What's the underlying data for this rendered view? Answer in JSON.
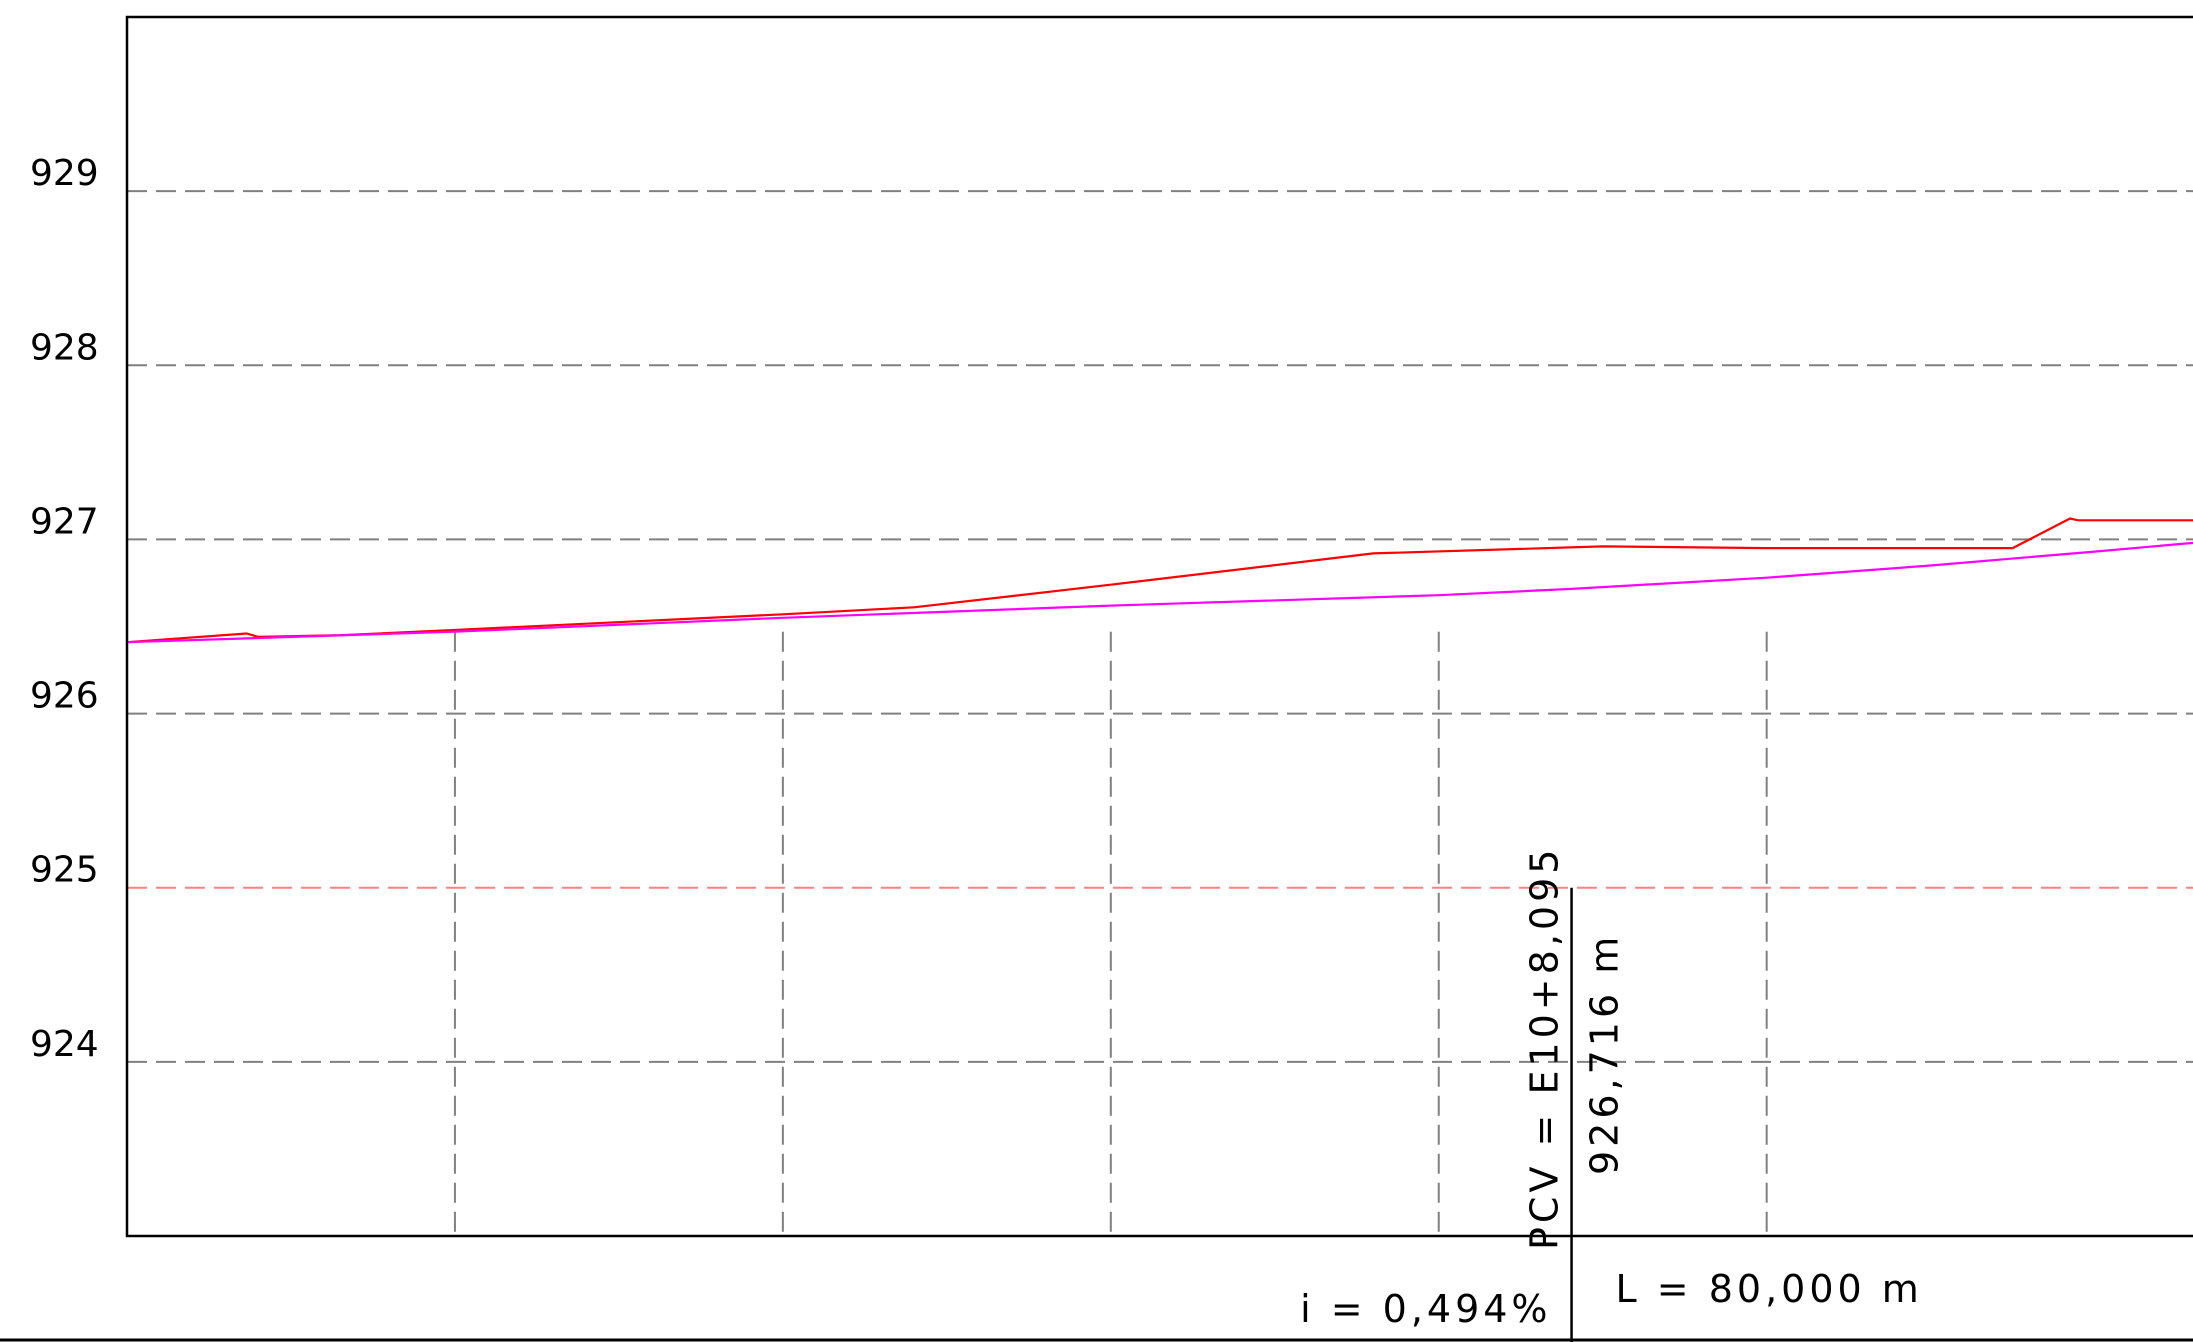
{
  "chart_data": {
    "type": "line",
    "title": "",
    "xlabel": "",
    "ylabel": "",
    "ylim": [
      923,
      930
    ],
    "xlim": [
      0,
      126
    ],
    "y_ticks": [
      {
        "value": 929,
        "label": "929"
      },
      {
        "value": 928,
        "label": "928"
      },
      {
        "value": 927,
        "label": "927"
      },
      {
        "value": 926,
        "label": "926"
      },
      {
        "value": 925,
        "label": "925",
        "highlight": true
      },
      {
        "value": 924,
        "label": "924"
      }
    ],
    "x_grid": [
      20,
      40,
      60,
      80,
      100
    ],
    "grid": true,
    "series": [
      {
        "color": "#ff0000",
        "points": [
          [
            0,
            926.41
          ],
          [
            7.3,
            926.46
          ],
          [
            8,
            926.44
          ],
          [
            13,
            926.45
          ],
          [
            20,
            926.48
          ],
          [
            40,
            926.57
          ],
          [
            48,
            926.61
          ],
          [
            60,
            926.74
          ],
          [
            76,
            926.92
          ],
          [
            90,
            926.96
          ],
          [
            100,
            926.95
          ],
          [
            115,
            926.95
          ],
          [
            118.5,
            927.12
          ],
          [
            119,
            927.11
          ],
          [
            126,
            927.11
          ]
        ]
      },
      {
        "color": "#ff00ff",
        "points": [
          [
            0,
            926.41
          ],
          [
            20,
            926.47
          ],
          [
            40,
            926.55
          ],
          [
            60,
            926.62
          ],
          [
            80,
            926.68
          ],
          [
            88.1,
            926.716
          ],
          [
            100,
            926.78
          ],
          [
            110,
            926.85
          ],
          [
            120,
            926.93
          ],
          [
            126,
            926.98
          ]
        ]
      }
    ],
    "colors": {
      "axis": "#000000",
      "grid": "#808080",
      "highlight_grid": "#ff8080"
    },
    "annotations": {
      "pcv_station": "PCV = E10+8,095",
      "pcv_elevation": "926,716 m",
      "pcv_x": 88.1,
      "grade": "i = 0,494%",
      "length": "L = 80,000 m"
    }
  }
}
